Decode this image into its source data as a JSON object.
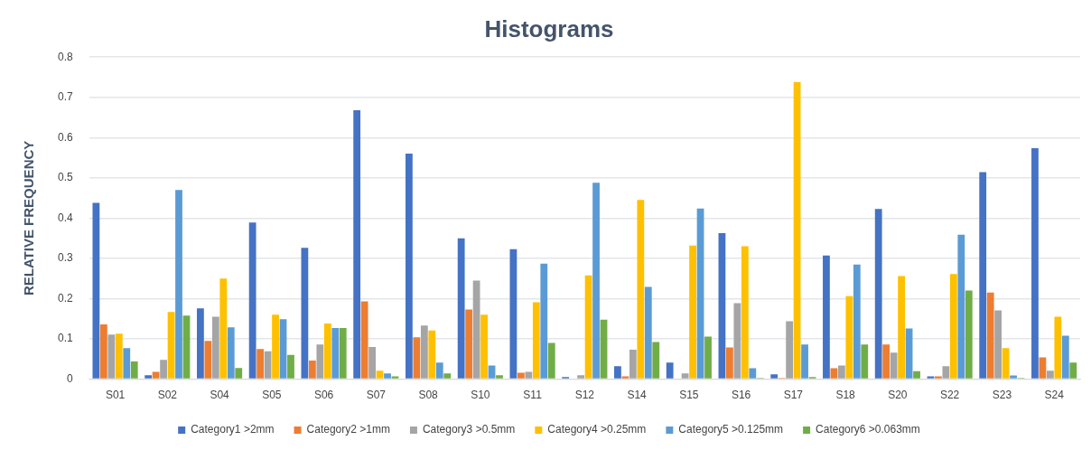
{
  "chart_data": {
    "type": "bar",
    "title": "Histograms",
    "ylabel": "RELATIVE FREQUENCY",
    "categories": [
      "S01",
      "S02",
      "S04",
      "S05",
      "S06",
      "S07",
      "S08",
      "S10",
      "S11",
      "S12",
      "S14",
      "S15",
      "S16",
      "S17",
      "S18",
      "S20",
      "S22",
      "S23",
      "S24"
    ],
    "series": [
      {
        "name": "Category1 >2mm",
        "color": "#4472c4",
        "values": [
          0.438,
          0.01,
          0.176,
          0.389,
          0.326,
          0.668,
          0.56,
          0.35,
          0.323,
          0.005,
          0.032,
          0.041,
          0.363,
          0.012,
          0.307,
          0.423,
          0.007,
          0.514,
          0.574
        ]
      },
      {
        "name": "Category2 >1mm",
        "color": "#ed7d31",
        "values": [
          0.136,
          0.018,
          0.095,
          0.075,
          0.046,
          0.193,
          0.104,
          0.173,
          0.016,
          null,
          0.007,
          null,
          0.079,
          0.003,
          0.027,
          0.086,
          0.007,
          0.215,
          0.054
        ]
      },
      {
        "name": "Category3 >0.5mm",
        "color": "#a5a5a5",
        "values": [
          0.111,
          0.048,
          0.155,
          0.069,
          0.086,
          0.08,
          0.133,
          0.245,
          0.018,
          0.01,
          0.073,
          0.014,
          0.189,
          0.144,
          0.034,
          0.066,
          0.032,
          0.171,
          0.021
        ]
      },
      {
        "name": "Category4 >0.25mm",
        "color": "#ffc000",
        "values": [
          0.113,
          0.167,
          0.25,
          0.16,
          0.138,
          0.021,
          0.121,
          0.16,
          0.191,
          0.258,
          0.445,
          0.332,
          0.33,
          0.738,
          0.206,
          0.256,
          0.261,
          0.077,
          0.155
        ]
      },
      {
        "name": "Category5 >0.125mm",
        "color": "#5b9bd5",
        "values": [
          0.077,
          0.47,
          0.129,
          0.149,
          0.127,
          0.014,
          0.041,
          0.034,
          0.287,
          0.488,
          0.229,
          0.424,
          0.027,
          0.086,
          0.285,
          0.126,
          0.359,
          0.009,
          0.108
        ]
      },
      {
        "name": "Category6 >0.063mm",
        "color": "#70ad47",
        "values": [
          0.044,
          0.158,
          0.028,
          0.06,
          0.127,
          0.007,
          0.014,
          0.01,
          0.09,
          0.148,
          0.092,
          0.106,
          0.003,
          0.005,
          0.086,
          0.02,
          0.22,
          0.003,
          0.041
        ]
      }
    ],
    "ylim": [
      0,
      0.8
    ],
    "yticks": [
      0,
      0.1,
      0.2,
      0.3,
      0.4,
      0.5,
      0.6,
      0.7,
      0.8
    ],
    "grid": "y",
    "legend": "bottom"
  }
}
